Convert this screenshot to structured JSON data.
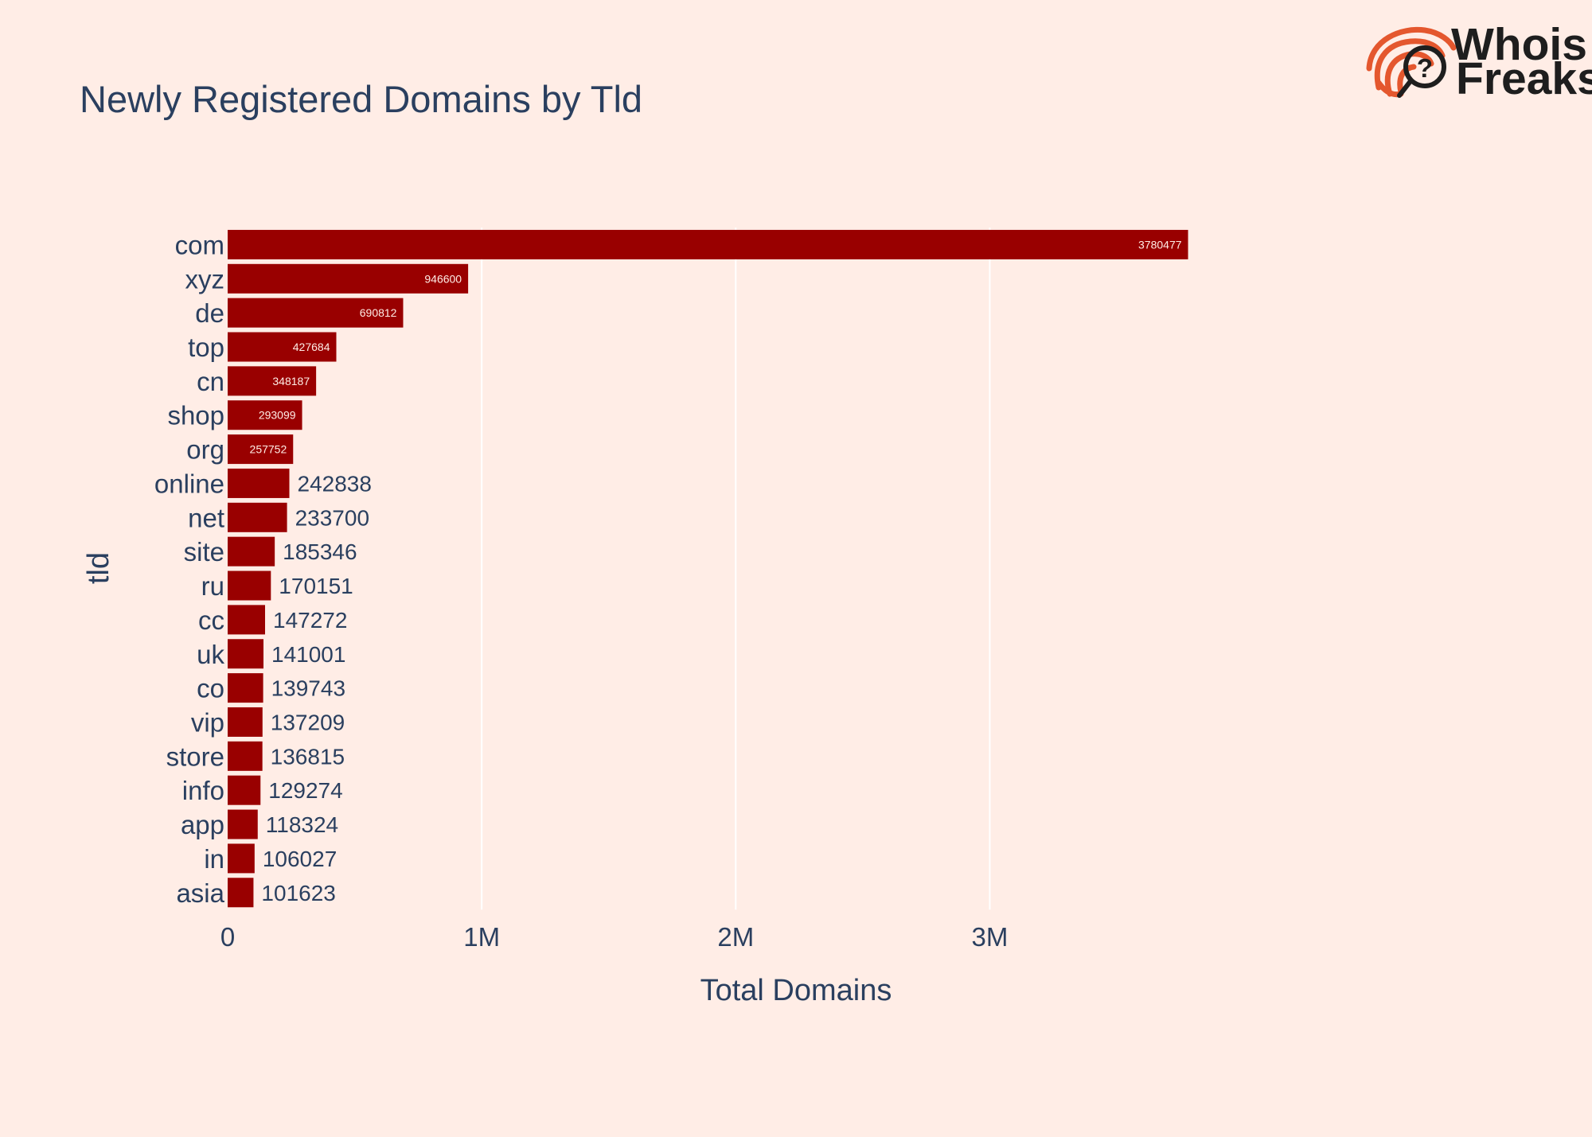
{
  "brand": {
    "line1": "Whois",
    "line2": "Freaks",
    "accent_color": "#e4572e",
    "text_color": "#1e1e1e"
  },
  "colors": {
    "background": "#ffede6",
    "bar": "#990000",
    "text": "#2a3f5f",
    "grid": "#ffffff",
    "inside_label": "#ffede6"
  },
  "chart_data": {
    "type": "bar",
    "orientation": "horizontal",
    "title": "Newly Registered Domains by Tld",
    "xlabel": "Total Domains",
    "ylabel": "tld",
    "xlim": [
      0,
      4700000
    ],
    "x_ticks": [
      {
        "value": 0,
        "label": "0"
      },
      {
        "value": 1000000,
        "label": "1M"
      },
      {
        "value": 2000000,
        "label": "2M"
      },
      {
        "value": 3000000,
        "label": "3M"
      }
    ],
    "grid": "vertical",
    "categories": [
      "com",
      "xyz",
      "de",
      "top",
      "cn",
      "shop",
      "org",
      "online",
      "net",
      "site",
      "ru",
      "cc",
      "uk",
      "co",
      "vip",
      "store",
      "info",
      "app",
      "in",
      "asia"
    ],
    "values": [
      3780477,
      946600,
      690812,
      427684,
      348187,
      293099,
      257752,
      242838,
      233700,
      185346,
      170151,
      147272,
      141001,
      139743,
      137209,
      136815,
      129274,
      118324,
      106027,
      101623
    ],
    "labels": [
      "3780477",
      "946600",
      "690812",
      "427684",
      "348187",
      "293099",
      "257752",
      "242838",
      "233700",
      "185346",
      "170151",
      "147272",
      "141001",
      "139743",
      "137209",
      "136815",
      "129274",
      "118324",
      "106027",
      "101623"
    ]
  }
}
